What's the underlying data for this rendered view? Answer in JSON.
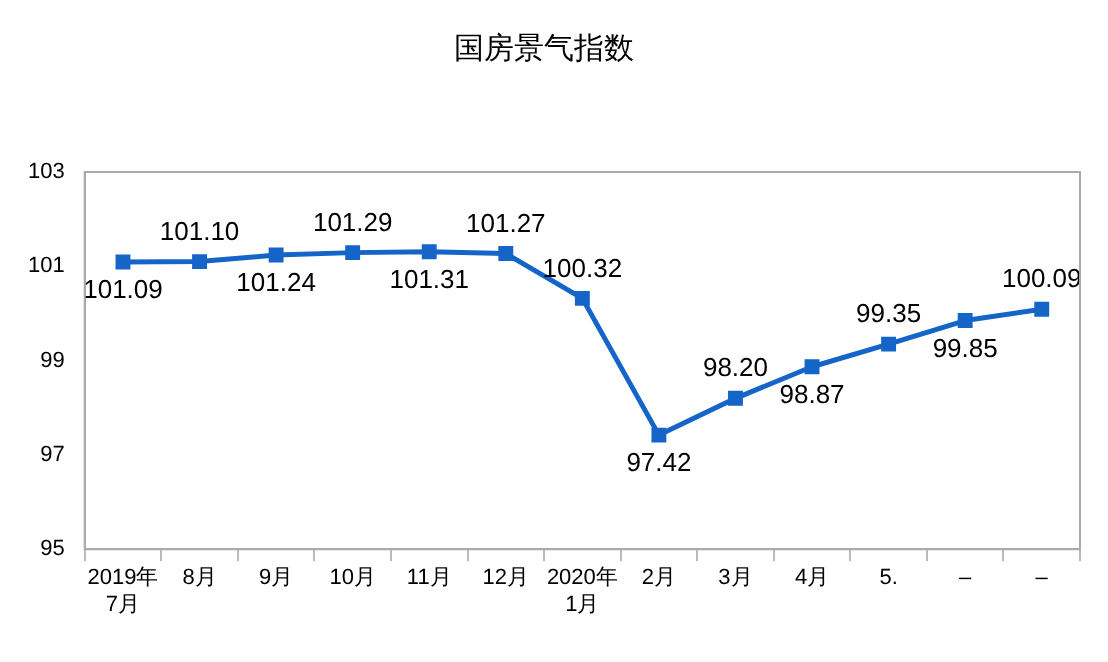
{
  "chart_data": {
    "type": "line",
    "title": "国房景气指数",
    "categories": [
      "2019年\n7月",
      "8月",
      "9月",
      "10月",
      "11月",
      "12月",
      "2020年\n1月",
      "2月",
      "3月",
      "4月",
      "5.",
      "–",
      "–"
    ],
    "series": [
      {
        "color": "#1565c8",
        "values": [
          101.09,
          101.1,
          101.24,
          101.29,
          101.31,
          101.27,
          100.32,
          97.42,
          98.2,
          98.87,
          99.35,
          99.85,
          100.09
        ],
        "value_labels": [
          "101.09",
          "101.10",
          "101.24",
          "101.29",
          "101.31",
          "101.27",
          "100.32",
          "97.42",
          "98.20",
          "98.87",
          "99.35",
          "99.85",
          "100.09"
        ]
      }
    ],
    "ylim": [
      95,
      103
    ],
    "yticks": [
      95,
      97,
      99,
      101,
      103
    ],
    "grid": false,
    "legend": false,
    "marker": "square",
    "line_style": "solid"
  }
}
